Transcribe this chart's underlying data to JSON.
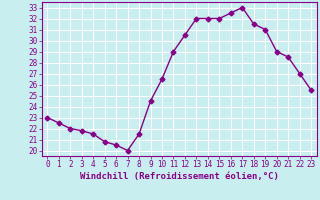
{
  "x": [
    0,
    1,
    2,
    3,
    4,
    5,
    6,
    7,
    8,
    9,
    10,
    11,
    12,
    13,
    14,
    15,
    16,
    17,
    18,
    19,
    20,
    21,
    22,
    23
  ],
  "y": [
    23.0,
    22.5,
    22.0,
    21.8,
    21.5,
    20.8,
    20.5,
    20.0,
    21.5,
    24.5,
    26.5,
    29.0,
    30.5,
    32.0,
    32.0,
    32.0,
    32.5,
    33.0,
    31.5,
    31.0,
    29.0,
    28.5,
    27.0,
    25.5
  ],
  "xlim": [
    -0.5,
    23.5
  ],
  "ylim": [
    19.5,
    33.5
  ],
  "yticks": [
    20,
    21,
    22,
    23,
    24,
    25,
    26,
    27,
    28,
    29,
    30,
    31,
    32,
    33
  ],
  "xticks": [
    0,
    1,
    2,
    3,
    4,
    5,
    6,
    7,
    8,
    9,
    10,
    11,
    12,
    13,
    14,
    15,
    16,
    17,
    18,
    19,
    20,
    21,
    22,
    23
  ],
  "xlabel": "Windchill (Refroidissement éolien,°C)",
  "line_color": "#880088",
  "marker": "D",
  "marker_size": 2.5,
  "bg_color": "#c8eef0",
  "grid_color": "#ffffff",
  "text_color": "#880088",
  "tick_fontsize": 5.5,
  "label_fontsize": 6.5
}
